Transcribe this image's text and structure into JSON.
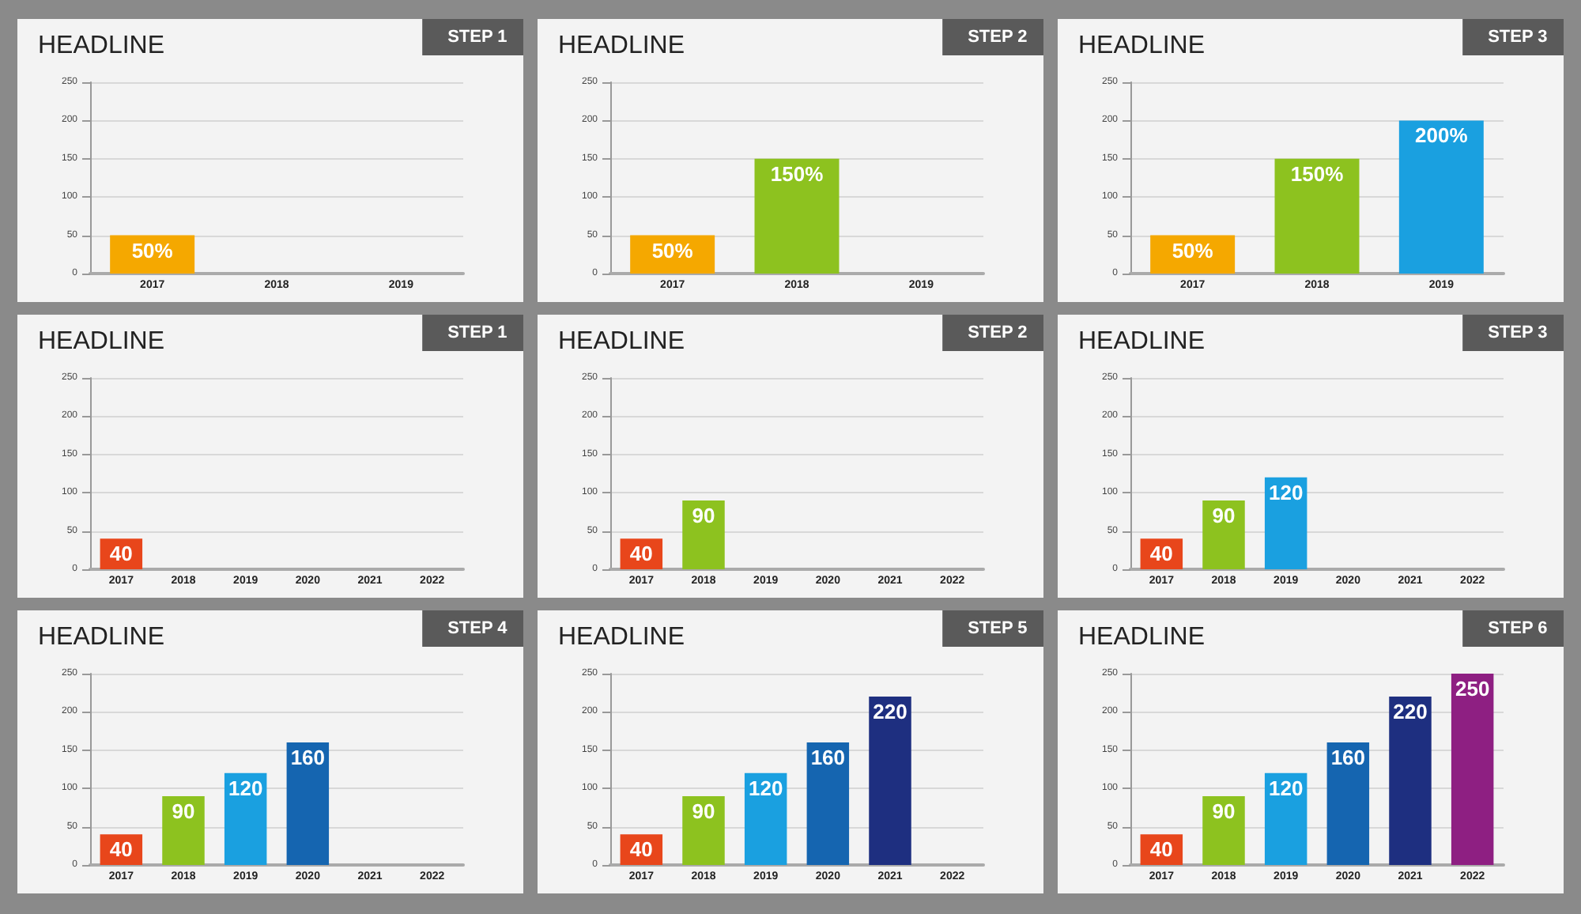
{
  "chart_data": [
    {
      "type": "bar",
      "title": "HEADLINE",
      "subtitle": "STEP 1",
      "categories": [
        "2017",
        "2018",
        "2019"
      ],
      "values": [
        50,
        null,
        null
      ],
      "value_labels": [
        "50%",
        null,
        null
      ],
      "colors": [
        "#f5a800",
        "#8dc21f",
        "#1aa0e0"
      ],
      "ylim": [
        0,
        250
      ],
      "yticks": [
        0,
        50,
        100,
        150,
        200,
        250
      ],
      "grid": "y"
    },
    {
      "type": "bar",
      "title": "HEADLINE",
      "subtitle": "STEP 2",
      "categories": [
        "2017",
        "2018",
        "2019"
      ],
      "values": [
        50,
        150,
        null
      ],
      "value_labels": [
        "50%",
        "150%",
        null
      ],
      "colors": [
        "#f5a800",
        "#8dc21f",
        "#1aa0e0"
      ],
      "ylim": [
        0,
        250
      ],
      "yticks": [
        0,
        50,
        100,
        150,
        200,
        250
      ],
      "grid": "y"
    },
    {
      "type": "bar",
      "title": "HEADLINE",
      "subtitle": "STEP 3",
      "categories": [
        "2017",
        "2018",
        "2019"
      ],
      "values": [
        50,
        150,
        200
      ],
      "value_labels": [
        "50%",
        "150%",
        "200%"
      ],
      "colors": [
        "#f5a800",
        "#8dc21f",
        "#1aa0e0"
      ],
      "ylim": [
        0,
        250
      ],
      "yticks": [
        0,
        50,
        100,
        150,
        200,
        250
      ],
      "grid": "y"
    },
    {
      "type": "bar",
      "title": "HEADLINE",
      "subtitle": "STEP 1",
      "categories": [
        "2017",
        "2018",
        "2019",
        "2020",
        "2021",
        "2022"
      ],
      "values": [
        40,
        null,
        null,
        null,
        null,
        null
      ],
      "colors": [
        "#e8461b",
        "#8dc21f",
        "#1aa0e0",
        "#1565b0",
        "#1e2f80",
        "#8e1f82"
      ],
      "ylim": [
        0,
        250
      ],
      "yticks": [
        0,
        50,
        100,
        150,
        200,
        250
      ],
      "grid": "y",
      "data_labels": true
    },
    {
      "type": "bar",
      "title": "HEADLINE",
      "subtitle": "STEP 2",
      "categories": [
        "2017",
        "2018",
        "2019",
        "2020",
        "2021",
        "2022"
      ],
      "values": [
        40,
        90,
        null,
        null,
        null,
        null
      ],
      "colors": [
        "#e8461b",
        "#8dc21f",
        "#1aa0e0",
        "#1565b0",
        "#1e2f80",
        "#8e1f82"
      ],
      "ylim": [
        0,
        250
      ],
      "yticks": [
        0,
        50,
        100,
        150,
        200,
        250
      ],
      "grid": "y",
      "data_labels": true
    },
    {
      "type": "bar",
      "title": "HEADLINE",
      "subtitle": "STEP 3",
      "categories": [
        "2017",
        "2018",
        "2019",
        "2020",
        "2021",
        "2022"
      ],
      "values": [
        40,
        90,
        120,
        null,
        null,
        null
      ],
      "colors": [
        "#e8461b",
        "#8dc21f",
        "#1aa0e0",
        "#1565b0",
        "#1e2f80",
        "#8e1f82"
      ],
      "ylim": [
        0,
        250
      ],
      "yticks": [
        0,
        50,
        100,
        150,
        200,
        250
      ],
      "grid": "y",
      "data_labels": true
    },
    {
      "type": "bar",
      "title": "HEADLINE",
      "subtitle": "STEP 4",
      "categories": [
        "2017",
        "2018",
        "2019",
        "2020",
        "2021",
        "2022"
      ],
      "values": [
        40,
        90,
        120,
        160,
        null,
        null
      ],
      "colors": [
        "#e8461b",
        "#8dc21f",
        "#1aa0e0",
        "#1565b0",
        "#1e2f80",
        "#8e1f82"
      ],
      "ylim": [
        0,
        250
      ],
      "yticks": [
        0,
        50,
        100,
        150,
        200,
        250
      ],
      "grid": "y",
      "data_labels": true
    },
    {
      "type": "bar",
      "title": "HEADLINE",
      "subtitle": "STEP 5",
      "categories": [
        "2017",
        "2018",
        "2019",
        "2020",
        "2021",
        "2022"
      ],
      "values": [
        40,
        90,
        120,
        160,
        220,
        null
      ],
      "colors": [
        "#e8461b",
        "#8dc21f",
        "#1aa0e0",
        "#1565b0",
        "#1e2f80",
        "#8e1f82"
      ],
      "ylim": [
        0,
        250
      ],
      "yticks": [
        0,
        50,
        100,
        150,
        200,
        250
      ],
      "grid": "y",
      "data_labels": true
    },
    {
      "type": "bar",
      "title": "HEADLINE",
      "subtitle": "STEP 6",
      "categories": [
        "2017",
        "2018",
        "2019",
        "2020",
        "2021",
        "2022"
      ],
      "values": [
        40,
        90,
        120,
        160,
        220,
        250
      ],
      "colors": [
        "#e8461b",
        "#8dc21f",
        "#1aa0e0",
        "#1565b0",
        "#1e2f80",
        "#8e1f82"
      ],
      "ylim": [
        0,
        250
      ],
      "yticks": [
        0,
        50,
        100,
        150,
        200,
        250
      ],
      "grid": "y",
      "data_labels": true
    }
  ]
}
